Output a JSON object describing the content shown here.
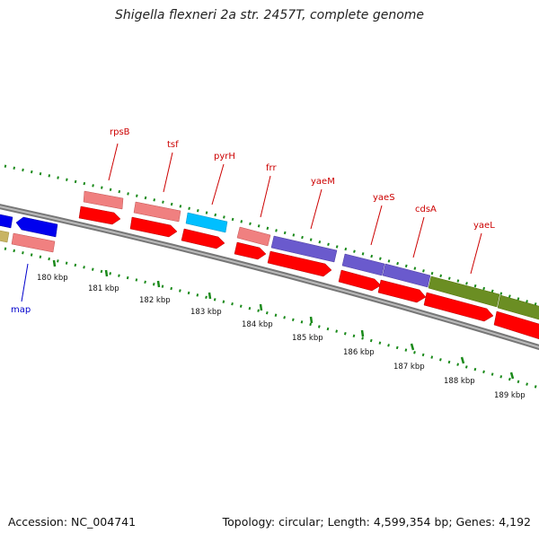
{
  "title": "Shigella flexneri 2a str. 2457T, complete genome",
  "footer": {
    "accession": "Accession: NC_004741",
    "summary": "Topology: circular; Length: 4,599,354 bp; Genes: 4,192"
  },
  "colors": {
    "backbone": "#808080",
    "tick": "#1a8a1a",
    "cds": "#ff0000",
    "pink": "#f08080",
    "cyan": "#00bfff",
    "purple": "#6a5acd",
    "olive": "#6b8e23",
    "blue": "#0000ee",
    "tan": "#c8b464",
    "gene_label": "#cc0000",
    "map_label": "#0000cc"
  },
  "ticks": [
    "180 kbp",
    "181 kbp",
    "182 kbp",
    "183 kbp",
    "184 kbp",
    "185 kbp",
    "186 kbp",
    "187 kbp",
    "188 kbp",
    "189 kbp"
  ],
  "gene_labels": [
    "rpsB",
    "tsf",
    "pyrH",
    "frr",
    "yaeM",
    "yaeS",
    "cdsA",
    "yaeL"
  ],
  "left_label": "map"
}
